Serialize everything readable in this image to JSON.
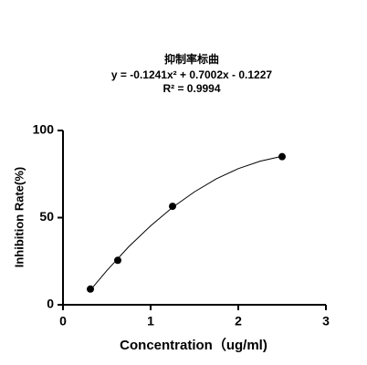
{
  "chart_data": {
    "type": "scatter",
    "title": "抑制率标曲",
    "equation": "y = -0.1241x² + 0.7002x - 0.1227",
    "r_squared": "R² = 0.9994",
    "x_label": "Concentration（ug/ml)",
    "y_label": "Inhibition Rate(%)",
    "x": [
      0.3125,
      0.625,
      1.25,
      2.5
    ],
    "values": [
      9,
      25.5,
      56.5,
      85
    ],
    "color": "#000000",
    "fit_curve": {
      "x": [
        0.3125,
        0.5,
        0.75,
        1.0,
        1.25,
        1.5,
        1.75,
        2.0,
        2.25,
        2.5
      ],
      "values": [
        8.4,
        19.6,
        33.3,
        45.3,
        55.9,
        64.8,
        72.3,
        78.1,
        82.4,
        85.2
      ]
    },
    "xlim": [
      0,
      3
    ],
    "xticks": [
      0,
      1,
      2,
      3
    ],
    "ylim": [
      0,
      100
    ],
    "yticks": [
      0,
      50,
      100
    ]
  }
}
